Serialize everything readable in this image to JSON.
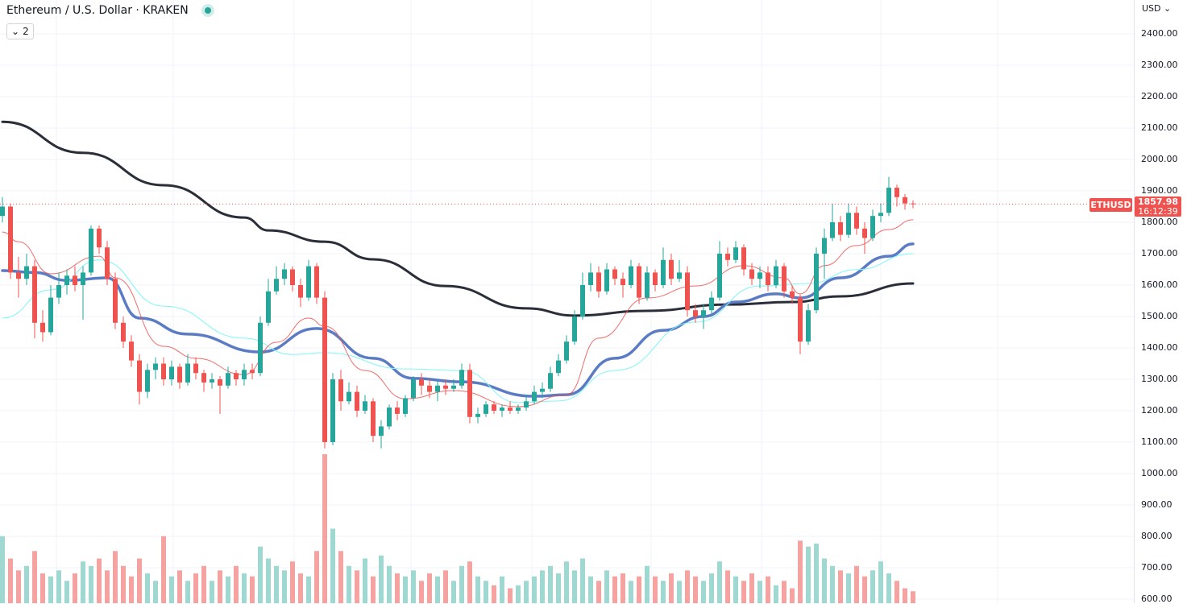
{
  "header": {
    "title": "Ethereum / U.S. Dollar · KRAKEN",
    "collapse_count": "2",
    "currency": "USD"
  },
  "last_price": {
    "symbol": "ETHUSD",
    "value": "1857.98",
    "countdown": "16:12:39"
  },
  "colors": {
    "up": "#26a69a",
    "down": "#ef5350",
    "volume_up": "#9fd8d0",
    "volume_down": "#f5a3a1",
    "ma_fast": "#ef5350",
    "ma_mid": "#5b7cc4",
    "ma_slow_cyan": "#7ff7f7",
    "ma_long": "#2a2e39",
    "grid": "#f0f3fa"
  },
  "chart_data": {
    "type": "candlestick",
    "title": "Ethereum / U.S. Dollar · KRAKEN",
    "ylim": [
      600,
      2450
    ],
    "yticks": [
      "2400.00",
      "2300.00",
      "2200.00",
      "2100.00",
      "2000.00",
      "1900.00",
      "1800.00",
      "1700.00",
      "1600.00",
      "1500.00",
      "1400.00",
      "1300.00",
      "1200.00",
      "1100.00",
      "1000.00",
      "900.00",
      "800.00",
      "700.00",
      "600.00"
    ],
    "grid": true,
    "candles": [
      [
        1820,
        1880,
        1800,
        1850
      ],
      [
        1850,
        1860,
        1620,
        1640
      ],
      [
        1640,
        1690,
        1560,
        1620
      ],
      [
        1620,
        1700,
        1600,
        1660
      ],
      [
        1660,
        1680,
        1430,
        1480
      ],
      [
        1480,
        1520,
        1420,
        1450
      ],
      [
        1450,
        1600,
        1440,
        1560
      ],
      [
        1560,
        1640,
        1540,
        1600
      ],
      [
        1600,
        1650,
        1570,
        1630
      ],
      [
        1630,
        1660,
        1580,
        1600
      ],
      [
        1600,
        1660,
        1490,
        1640
      ],
      [
        1640,
        1790,
        1630,
        1780
      ],
      [
        1780,
        1790,
        1700,
        1720
      ],
      [
        1720,
        1740,
        1600,
        1620
      ],
      [
        1620,
        1640,
        1460,
        1480
      ],
      [
        1480,
        1500,
        1400,
        1420
      ],
      [
        1420,
        1440,
        1340,
        1360
      ],
      [
        1360,
        1380,
        1220,
        1260
      ],
      [
        1260,
        1350,
        1240,
        1330
      ],
      [
        1330,
        1370,
        1300,
        1350
      ],
      [
        1350,
        1370,
        1280,
        1300
      ],
      [
        1300,
        1360,
        1280,
        1340
      ],
      [
        1340,
        1350,
        1270,
        1290
      ],
      [
        1290,
        1380,
        1280,
        1350
      ],
      [
        1350,
        1370,
        1300,
        1320
      ],
      [
        1320,
        1330,
        1260,
        1290
      ],
      [
        1290,
        1320,
        1270,
        1300
      ],
      [
        1300,
        1310,
        1190,
        1280
      ],
      [
        1280,
        1340,
        1270,
        1320
      ],
      [
        1320,
        1330,
        1280,
        1300
      ],
      [
        1300,
        1350,
        1280,
        1330
      ],
      [
        1330,
        1350,
        1300,
        1320
      ],
      [
        1320,
        1500,
        1310,
        1480
      ],
      [
        1480,
        1620,
        1470,
        1580
      ],
      [
        1580,
        1660,
        1570,
        1620
      ],
      [
        1620,
        1670,
        1600,
        1650
      ],
      [
        1650,
        1660,
        1580,
        1600
      ],
      [
        1600,
        1620,
        1530,
        1560
      ],
      [
        1560,
        1680,
        1550,
        1660
      ],
      [
        1660,
        1670,
        1540,
        1560
      ],
      [
        1560,
        1580,
        1080,
        1100
      ],
      [
        1100,
        1320,
        1090,
        1300
      ],
      [
        1300,
        1330,
        1200,
        1230
      ],
      [
        1230,
        1290,
        1220,
        1260
      ],
      [
        1260,
        1280,
        1180,
        1200
      ],
      [
        1200,
        1250,
        1190,
        1230
      ],
      [
        1230,
        1240,
        1100,
        1120
      ],
      [
        1120,
        1170,
        1080,
        1150
      ],
      [
        1150,
        1220,
        1140,
        1210
      ],
      [
        1210,
        1230,
        1170,
        1190
      ],
      [
        1190,
        1250,
        1180,
        1240
      ],
      [
        1240,
        1310,
        1230,
        1300
      ],
      [
        1300,
        1320,
        1250,
        1280
      ],
      [
        1280,
        1300,
        1240,
        1260
      ],
      [
        1260,
        1300,
        1230,
        1280
      ],
      [
        1280,
        1300,
        1250,
        1270
      ],
      [
        1270,
        1300,
        1260,
        1280
      ],
      [
        1280,
        1350,
        1270,
        1330
      ],
      [
        1330,
        1350,
        1160,
        1180
      ],
      [
        1180,
        1210,
        1160,
        1190
      ],
      [
        1190,
        1230,
        1180,
        1220
      ],
      [
        1220,
        1230,
        1190,
        1200
      ],
      [
        1200,
        1220,
        1180,
        1210
      ],
      [
        1210,
        1230,
        1190,
        1200
      ],
      [
        1200,
        1220,
        1190,
        1210
      ],
      [
        1210,
        1250,
        1200,
        1230
      ],
      [
        1230,
        1280,
        1220,
        1260
      ],
      [
        1260,
        1290,
        1240,
        1270
      ],
      [
        1270,
        1340,
        1260,
        1320
      ],
      [
        1320,
        1380,
        1310,
        1360
      ],
      [
        1360,
        1440,
        1350,
        1420
      ],
      [
        1420,
        1520,
        1410,
        1500
      ],
      [
        1500,
        1640,
        1490,
        1600
      ],
      [
        1600,
        1670,
        1580,
        1640
      ],
      [
        1640,
        1660,
        1560,
        1580
      ],
      [
        1580,
        1670,
        1570,
        1650
      ],
      [
        1650,
        1660,
        1600,
        1620
      ],
      [
        1620,
        1640,
        1560,
        1600
      ],
      [
        1600,
        1680,
        1590,
        1660
      ],
      [
        1660,
        1670,
        1540,
        1560
      ],
      [
        1560,
        1660,
        1550,
        1640
      ],
      [
        1640,
        1650,
        1580,
        1600
      ],
      [
        1600,
        1720,
        1590,
        1680
      ],
      [
        1680,
        1700,
        1600,
        1620
      ],
      [
        1620,
        1680,
        1610,
        1640
      ],
      [
        1640,
        1660,
        1500,
        1520
      ],
      [
        1520,
        1540,
        1480,
        1500
      ],
      [
        1500,
        1540,
        1460,
        1520
      ],
      [
        1520,
        1580,
        1510,
        1560
      ],
      [
        1560,
        1740,
        1550,
        1700
      ],
      [
        1700,
        1720,
        1660,
        1680
      ],
      [
        1680,
        1740,
        1670,
        1720
      ],
      [
        1720,
        1730,
        1630,
        1650
      ],
      [
        1650,
        1670,
        1600,
        1620
      ],
      [
        1620,
        1660,
        1590,
        1640
      ],
      [
        1640,
        1660,
        1580,
        1600
      ],
      [
        1600,
        1680,
        1590,
        1660
      ],
      [
        1660,
        1670,
        1560,
        1580
      ],
      [
        1580,
        1600,
        1540,
        1560
      ],
      [
        1560,
        1570,
        1380,
        1420
      ],
      [
        1420,
        1540,
        1410,
        1520
      ],
      [
        1520,
        1720,
        1510,
        1700
      ],
      [
        1700,
        1780,
        1620,
        1750
      ],
      [
        1750,
        1860,
        1740,
        1800
      ],
      [
        1800,
        1820,
        1740,
        1760
      ],
      [
        1760,
        1860,
        1750,
        1830
      ],
      [
        1830,
        1850,
        1760,
        1780
      ],
      [
        1780,
        1800,
        1700,
        1750
      ],
      [
        1750,
        1840,
        1740,
        1820
      ],
      [
        1820,
        1860,
        1800,
        1830
      ],
      [
        1830,
        1945,
        1820,
        1910
      ],
      [
        1910,
        1920,
        1850,
        1880
      ],
      [
        1880,
        1890,
        1840,
        1860
      ],
      [
        1860,
        1870,
        1845,
        1858
      ]
    ],
    "volume_relative": [
      45,
      30,
      22,
      25,
      35,
      20,
      18,
      22,
      15,
      20,
      28,
      25,
      30,
      22,
      35,
      25,
      18,
      30,
      20,
      15,
      45,
      18,
      22,
      15,
      20,
      25,
      15,
      22,
      18,
      25,
      20,
      18,
      38,
      30,
      25,
      22,
      28,
      20,
      18,
      35,
      100,
      50,
      35,
      25,
      22,
      30,
      18,
      32,
      25,
      20,
      18,
      22,
      15,
      20,
      18,
      22,
      15,
      25,
      28,
      18,
      15,
      12,
      18,
      10,
      12,
      15,
      18,
      22,
      25,
      20,
      28,
      22,
      30,
      18,
      15,
      22,
      18,
      20,
      15,
      18,
      25,
      18,
      15,
      20,
      15,
      22,
      18,
      15,
      20,
      28,
      22,
      18,
      15,
      20,
      15,
      18,
      12,
      15,
      10,
      42,
      38,
      40,
      30,
      25,
      22,
      20,
      25,
      18,
      22,
      28,
      20,
      15,
      10,
      8
    ],
    "moving_averages": [
      {
        "color_key": "ma_long",
        "width": 3,
        "points": [
          [
            0,
            2120
          ],
          [
            10,
            2021
          ],
          [
            20,
            1918
          ],
          [
            30,
            1815
          ],
          [
            33,
            1774
          ],
          [
            40,
            1738
          ],
          [
            46,
            1682
          ],
          [
            55,
            1597
          ],
          [
            65,
            1526
          ],
          [
            71,
            1503
          ],
          [
            80,
            1518
          ],
          [
            90,
            1538
          ],
          [
            98,
            1546
          ],
          [
            104,
            1564
          ],
          [
            113,
            1605
          ]
        ]
      },
      {
        "color_key": "ma_mid",
        "width": 3.5,
        "points": [
          [
            0,
            1646
          ],
          [
            4,
            1640
          ],
          [
            8,
            1615
          ],
          [
            13,
            1623
          ],
          [
            17,
            1495
          ],
          [
            23,
            1444
          ],
          [
            32,
            1387
          ],
          [
            39,
            1462
          ],
          [
            46,
            1367
          ],
          [
            51,
            1303
          ],
          [
            57,
            1292
          ],
          [
            66,
            1246
          ],
          [
            70,
            1251
          ],
          [
            76,
            1367
          ],
          [
            82,
            1456
          ],
          [
            87,
            1500
          ],
          [
            91,
            1546
          ],
          [
            96,
            1572
          ],
          [
            99,
            1559
          ],
          [
            104,
            1623
          ],
          [
            110,
            1692
          ],
          [
            113,
            1731
          ]
        ]
      },
      {
        "color_key": "ma_slow_cyan",
        "width": 1,
        "points": [
          [
            0,
            1495
          ],
          [
            6,
            1585
          ],
          [
            12,
            1680
          ],
          [
            20,
            1533
          ],
          [
            30,
            1431
          ],
          [
            36,
            1379
          ],
          [
            40,
            1385
          ],
          [
            50,
            1333
          ],
          [
            57,
            1328
          ],
          [
            64,
            1226
          ],
          [
            69,
            1231
          ],
          [
            76,
            1328
          ],
          [
            86,
            1482
          ],
          [
            94,
            1597
          ],
          [
            100,
            1605
          ],
          [
            106,
            1649
          ],
          [
            113,
            1700
          ]
        ]
      },
      {
        "color_key": "ma_fast",
        "width": 1,
        "points": [
          [
            0,
            1769
          ],
          [
            2,
            1738
          ],
          [
            6,
            1636
          ],
          [
            12,
            1692
          ],
          [
            14,
            1623
          ],
          [
            20,
            1405
          ],
          [
            24,
            1367
          ],
          [
            30,
            1315
          ],
          [
            34,
            1418
          ],
          [
            38,
            1495
          ],
          [
            40,
            1469
          ],
          [
            45,
            1328
          ],
          [
            50,
            1238
          ],
          [
            56,
            1264
          ],
          [
            64,
            1213
          ],
          [
            70,
            1251
          ],
          [
            74,
            1431
          ],
          [
            80,
            1559
          ],
          [
            86,
            1597
          ],
          [
            92,
            1662
          ],
          [
            97,
            1623
          ],
          [
            99,
            1572
          ],
          [
            102,
            1662
          ],
          [
            106,
            1726
          ],
          [
            110,
            1777
          ],
          [
            113,
            1808
          ]
        ]
      }
    ],
    "last_value": 1857.98
  }
}
